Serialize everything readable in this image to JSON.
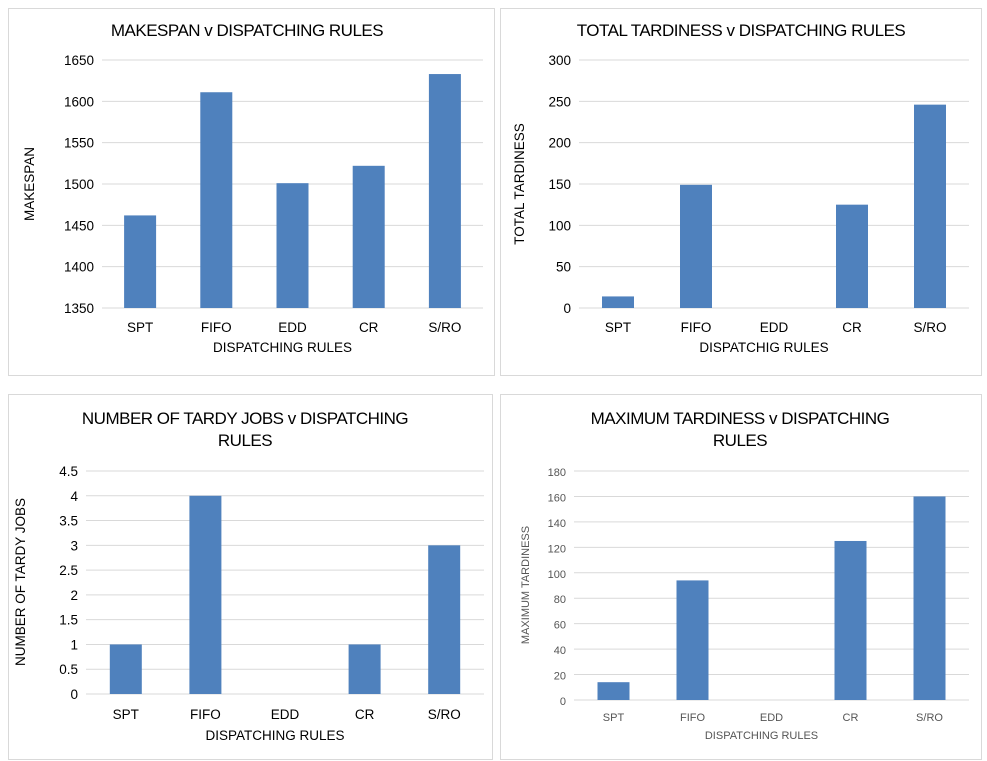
{
  "colors": {
    "bar": "#4f81bd",
    "grid": "#d9d9d9"
  },
  "chart_data": [
    {
      "type": "bar",
      "title": [
        "MAKESPAN v DISPATCHING RULES"
      ],
      "xlabel": "DISPATCHING RULES",
      "ylabel": "MAKESPAN",
      "categories": [
        "SPT",
        "FIFO",
        "EDD",
        "CR",
        "S/RO"
      ],
      "values": [
        1462,
        1611,
        1501,
        1522,
        1633
      ],
      "ylim": [
        1350,
        1650
      ],
      "yticks": [
        1350,
        1400,
        1450,
        1500,
        1550,
        1600,
        1650
      ],
      "grid": true
    },
    {
      "type": "bar",
      "title": [
        "TOTAL TARDINESS v DISPATCHING RULES"
      ],
      "xlabel": "DISPATCHIG RULES",
      "ylabel": "TOTAL TARDINESS",
      "categories": [
        "SPT",
        "FIFO",
        "EDD",
        "CR",
        "S/RO"
      ],
      "values": [
        14,
        149,
        0,
        125,
        246
      ],
      "ylim": [
        0,
        300
      ],
      "yticks": [
        0,
        50,
        100,
        150,
        200,
        250,
        300
      ],
      "grid": true
    },
    {
      "type": "bar",
      "title": [
        "NUMBER OF TARDY JOBS v DISPATCHING",
        "RULES"
      ],
      "xlabel": "DISPATCHING RULES",
      "ylabel": "NUMBER OF TARDY JOBS",
      "categories": [
        "SPT",
        "FIFO",
        "EDD",
        "CR",
        "S/RO"
      ],
      "values": [
        1,
        4,
        0,
        1,
        3
      ],
      "ylim": [
        0,
        4.5
      ],
      "yticks": [
        0,
        0.5,
        1,
        1.5,
        2,
        2.5,
        3,
        3.5,
        4,
        4.5
      ],
      "grid": true
    },
    {
      "type": "bar",
      "title": [
        "MAXIMUM TARDINESS v DISPATCHING",
        "RULES"
      ],
      "xlabel": "DISPATCHING RULES",
      "ylabel": "MAXIMUM TARDINESS",
      "categories": [
        "SPT",
        "FIFO",
        "EDD",
        "CR",
        "S/RO"
      ],
      "values": [
        14,
        94,
        0,
        125,
        160
      ],
      "ylim": [
        0,
        180
      ],
      "yticks": [
        0,
        20,
        40,
        60,
        80,
        100,
        120,
        140,
        160,
        180
      ],
      "grid": true
    }
  ]
}
